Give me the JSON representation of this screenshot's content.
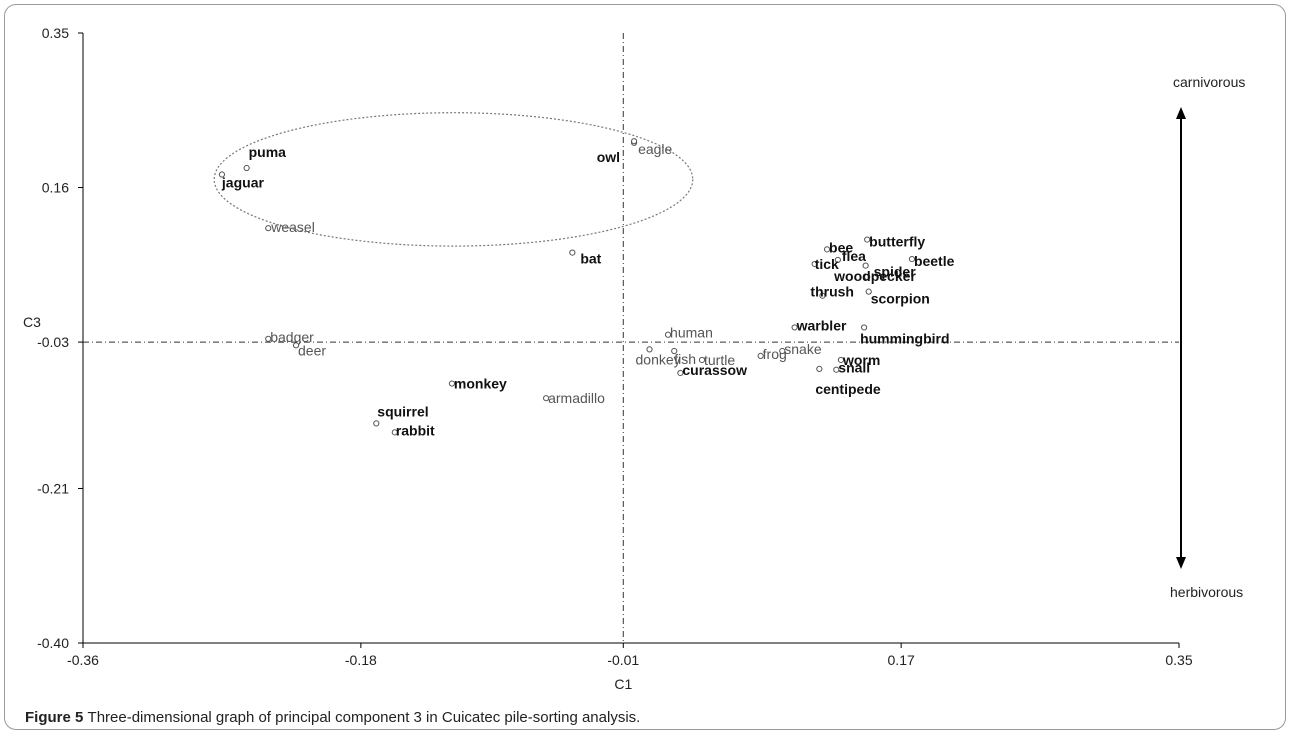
{
  "caption": {
    "lead": "Figure 5",
    "text": "Three-dimensional graph of principal component 3 in Cuicatec pile-sorting analysis."
  },
  "colors": {
    "axis": "#000000",
    "point": "#555555",
    "label": "#111111",
    "ellipse": "#777777"
  },
  "chart_data": {
    "type": "scatter",
    "title": "",
    "xlabel": "C1",
    "ylabel": "C3",
    "xlim": [
      -0.36,
      0.35
    ],
    "ylim": [
      -0.4,
      0.35
    ],
    "x_ticks": [
      "-0.36",
      "-0.18",
      "-0.01",
      "0.17",
      "0.35"
    ],
    "x_tick_values": [
      -0.36,
      -0.18,
      -0.01,
      0.17,
      0.35
    ],
    "y_ticks": [
      "0.35",
      "0.16",
      "-0.03",
      "-0.21",
      "-0.40"
    ],
    "y_tick_values": [
      0.35,
      0.16,
      -0.03,
      -0.21,
      -0.4
    ],
    "reference_lines": {
      "x": -0.01,
      "y": -0.03
    },
    "grid": false,
    "points": [
      {
        "label": "puma",
        "x": -0.254,
        "y": 0.184,
        "bold": true
      },
      {
        "label": "jaguar",
        "x": -0.27,
        "y": 0.176,
        "bold": true
      },
      {
        "label": "weasel",
        "x": -0.24,
        "y": 0.11,
        "bold": false
      },
      {
        "label": "owl",
        "x": -0.003,
        "y": 0.215,
        "bold": true
      },
      {
        "label": "eagle",
        "x": -0.003,
        "y": 0.217,
        "bold": false
      },
      {
        "label": "bat",
        "x": -0.043,
        "y": 0.08,
        "bold": true
      },
      {
        "label": "badger",
        "x": -0.24,
        "y": -0.026,
        "bold": false
      },
      {
        "label": "deer",
        "x": -0.222,
        "y": -0.034,
        "bold": false
      },
      {
        "label": "monkey",
        "x": -0.121,
        "y": -0.081,
        "bold": true
      },
      {
        "label": "armadillo",
        "x": -0.06,
        "y": -0.099,
        "bold": false
      },
      {
        "label": "squirrel",
        "x": -0.17,
        "y": -0.13,
        "bold": true
      },
      {
        "label": "rabbit",
        "x": -0.158,
        "y": -0.141,
        "bold": true
      },
      {
        "label": "human",
        "x": 0.019,
        "y": -0.021,
        "bold": false
      },
      {
        "label": "donkey",
        "x": 0.007,
        "y": -0.039,
        "bold": false
      },
      {
        "label": "fish",
        "x": 0.023,
        "y": -0.041,
        "bold": false
      },
      {
        "label": "turtle",
        "x": 0.041,
        "y": -0.052,
        "bold": false
      },
      {
        "label": "curassow",
        "x": 0.027,
        "y": -0.068,
        "bold": true
      },
      {
        "label": "frog",
        "x": 0.079,
        "y": -0.047,
        "bold": false
      },
      {
        "label": "snake",
        "x": 0.093,
        "y": -0.041,
        "bold": false
      },
      {
        "label": "warbler",
        "x": 0.101,
        "y": -0.012,
        "bold": true
      },
      {
        "label": "hummingbird",
        "x": 0.146,
        "y": -0.012,
        "bold": true
      },
      {
        "label": "worm",
        "x": 0.131,
        "y": -0.052,
        "bold": true
      },
      {
        "label": "snail",
        "x": 0.128,
        "y": -0.064,
        "bold": true
      },
      {
        "label": "centipede",
        "x": 0.117,
        "y": -0.063,
        "bold": true
      },
      {
        "label": "butterfly",
        "x": 0.148,
        "y": 0.096,
        "bold": true
      },
      {
        "label": "bee",
        "x": 0.122,
        "y": 0.084,
        "bold": true
      },
      {
        "label": "flea",
        "x": 0.129,
        "y": 0.071,
        "bold": true
      },
      {
        "label": "tick",
        "x": 0.114,
        "y": 0.066,
        "bold": true
      },
      {
        "label": "spider",
        "x": 0.147,
        "y": 0.064,
        "bold": true
      },
      {
        "label": "beetle",
        "x": 0.177,
        "y": 0.072,
        "bold": true
      },
      {
        "label": "woodpecker",
        "x": 0.148,
        "y": 0.05,
        "bold": true
      },
      {
        "label": "thrush",
        "x": 0.119,
        "y": 0.027,
        "bold": true
      },
      {
        "label": "scorpion",
        "x": 0.149,
        "y": 0.032,
        "bold": true
      }
    ],
    "annotations": {
      "carnivorous": "carnivorous",
      "herbivorous": "herbivorous"
    },
    "ellipse": {
      "cx": -0.12,
      "cy": 0.17,
      "rx": 0.155,
      "ry": 0.082
    }
  }
}
